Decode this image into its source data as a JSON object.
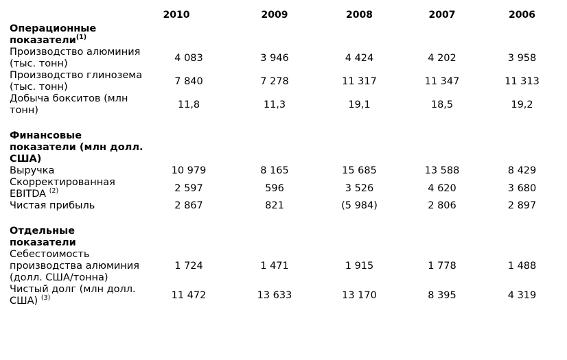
{
  "years": [
    "2010",
    "2009",
    "2008",
    "2007",
    "2006"
  ],
  "sections": [
    {
      "title": "Операционные показатели",
      "title_sup": "(1)",
      "rows": [
        {
          "label": "Производство алюминия (тыс. тонн)",
          "sup": "",
          "values": [
            "4 083",
            "3 946",
            "4 424",
            "4 202",
            "3 958"
          ]
        },
        {
          "label": "Производство глинозема (тыс. тонн)",
          "sup": "",
          "values": [
            "7 840",
            "7 278",
            "11 317",
            "11 347",
            "11 313"
          ]
        },
        {
          "label": "Добыча бокситов (млн тонн)",
          "sup": "",
          "values": [
            "11,8",
            "11,3",
            "19,1",
            "18,5",
            "19,2"
          ]
        }
      ]
    },
    {
      "title": "Финансовые показатели (млн долл. США)",
      "title_sup": "",
      "rows": [
        {
          "label": "Выручка",
          "sup": "",
          "values": [
            "10 979",
            "8 165",
            "15 685",
            "13 588",
            "8 429"
          ]
        },
        {
          "label": "Скорректированная EBITDA",
          "sup": "(2)",
          "values": [
            "2 597",
            "596",
            "3 526",
            "4 620",
            "3 680"
          ]
        },
        {
          "label": "Чистая прибыль",
          "sup": "",
          "values": [
            "2 867",
            "821",
            "(5 984)",
            "2 806",
            "2 897"
          ]
        }
      ]
    },
    {
      "title": "Отдельные показатели",
      "title_sup": "",
      "rows": [
        {
          "label": "Себестоимость производства алюминия (долл. США/тонна)",
          "sup": "",
          "values": [
            "1 724",
            "1 471",
            "1 915",
            "1 778",
            "1 488"
          ]
        },
        {
          "label": "Чистый долг (млн долл. США)",
          "sup": "(3)",
          "values": [
            "11 472",
            "13 633",
            "13 170",
            "8 395",
            "4 319"
          ]
        }
      ]
    }
  ]
}
